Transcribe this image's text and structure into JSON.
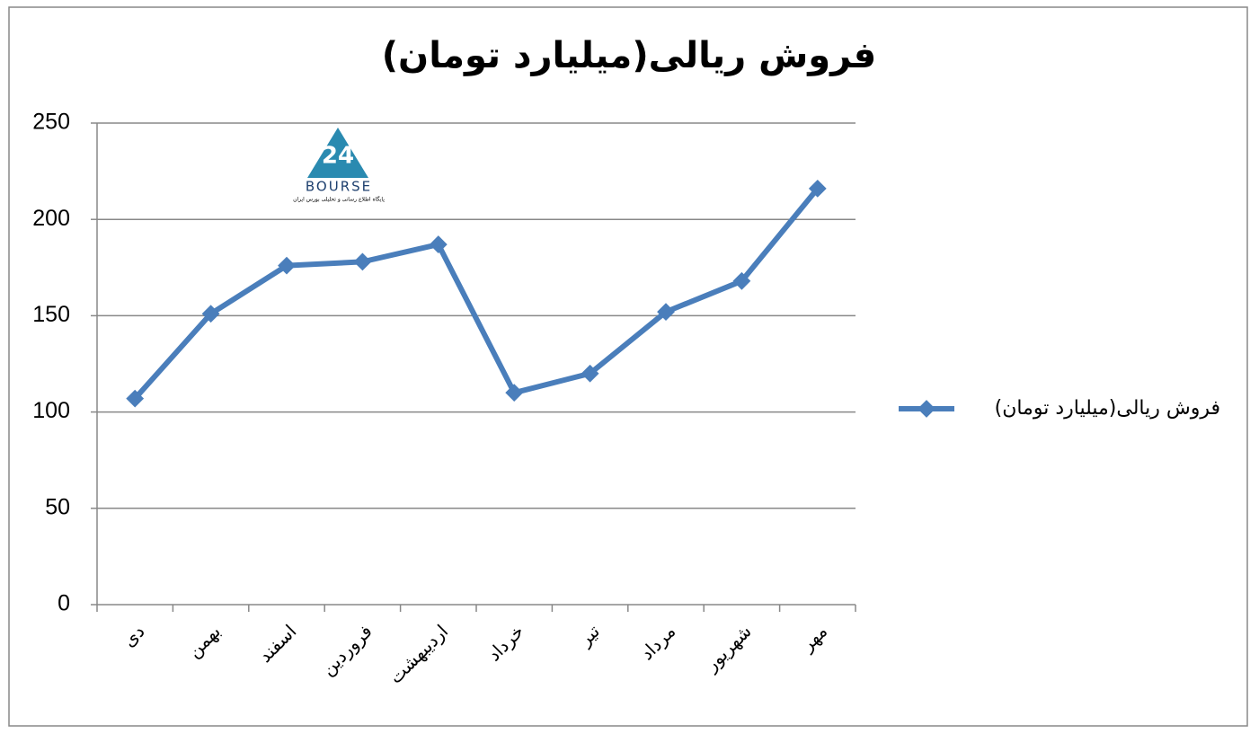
{
  "chart_data": {
    "type": "line",
    "title": "فروش ریالی(میلیارد تومان)",
    "categories": [
      "دی",
      "بهمن",
      "اسفند",
      "فروردین",
      "اردیبهشت",
      "خرداد",
      "تیر",
      "مرداد",
      "شهریور",
      "مهر"
    ],
    "series": [
      {
        "name": "فروش ریالی(میلیارد تومان)",
        "color": "#4a7ebb",
        "values": [
          107,
          151,
          176,
          178,
          187,
          110,
          120,
          152,
          168,
          216
        ]
      }
    ],
    "ylim": [
      0,
      250
    ],
    "yticks": [
      0,
      50,
      100,
      150,
      200,
      250
    ],
    "grid": true,
    "legend": "right"
  },
  "logo": {
    "name": "BOURSE",
    "tagline": "پایگاه اطلاع رسانی و تحلیلی بورس ایران"
  }
}
